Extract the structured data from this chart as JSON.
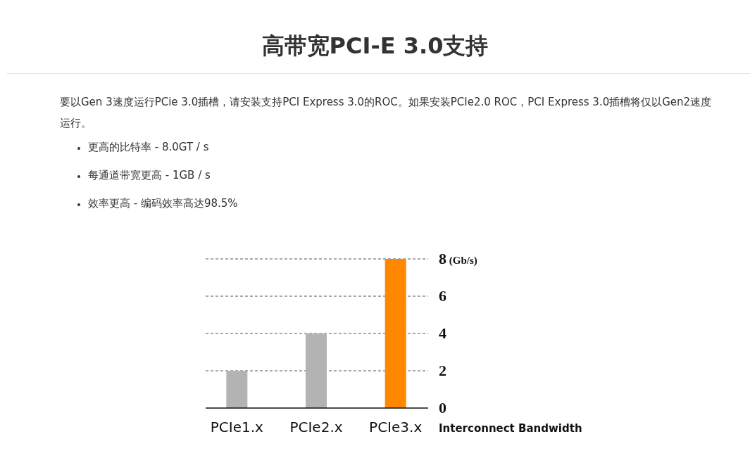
{
  "chart_data": {
    "type": "bar",
    "title": "高带宽PCI-E 3.0支持",
    "subtitle": "要以Gen 3速度运行PCie 3.0插槽，请安装支持PCI Express 3.0的ROC。如果安装PCIe2.0 ROC，PCI Express 3.0插槽将仅以Gen2速度运行。",
    "annotations": [
      "更高的比特率 - 8.0GT / s",
      "每通道带宽更高 - 1GB / s",
      "效率更高 - 编码效率高达98.5%"
    ],
    "categories": [
      "PCIe1.x",
      "PCIe2.x",
      "PCIe3.x"
    ],
    "values": [
      2,
      4,
      8
    ],
    "colors": [
      "#b3b3b3",
      "#b3b3b3",
      "#ff8800"
    ],
    "xlabel": "Interconnect Bandwidth",
    "ylim": [
      0,
      8
    ],
    "yticks": [
      0,
      2,
      4,
      6,
      {
        "value": 8,
        "label": "8 (Gb/s)"
      }
    ],
    "grid": "y"
  }
}
